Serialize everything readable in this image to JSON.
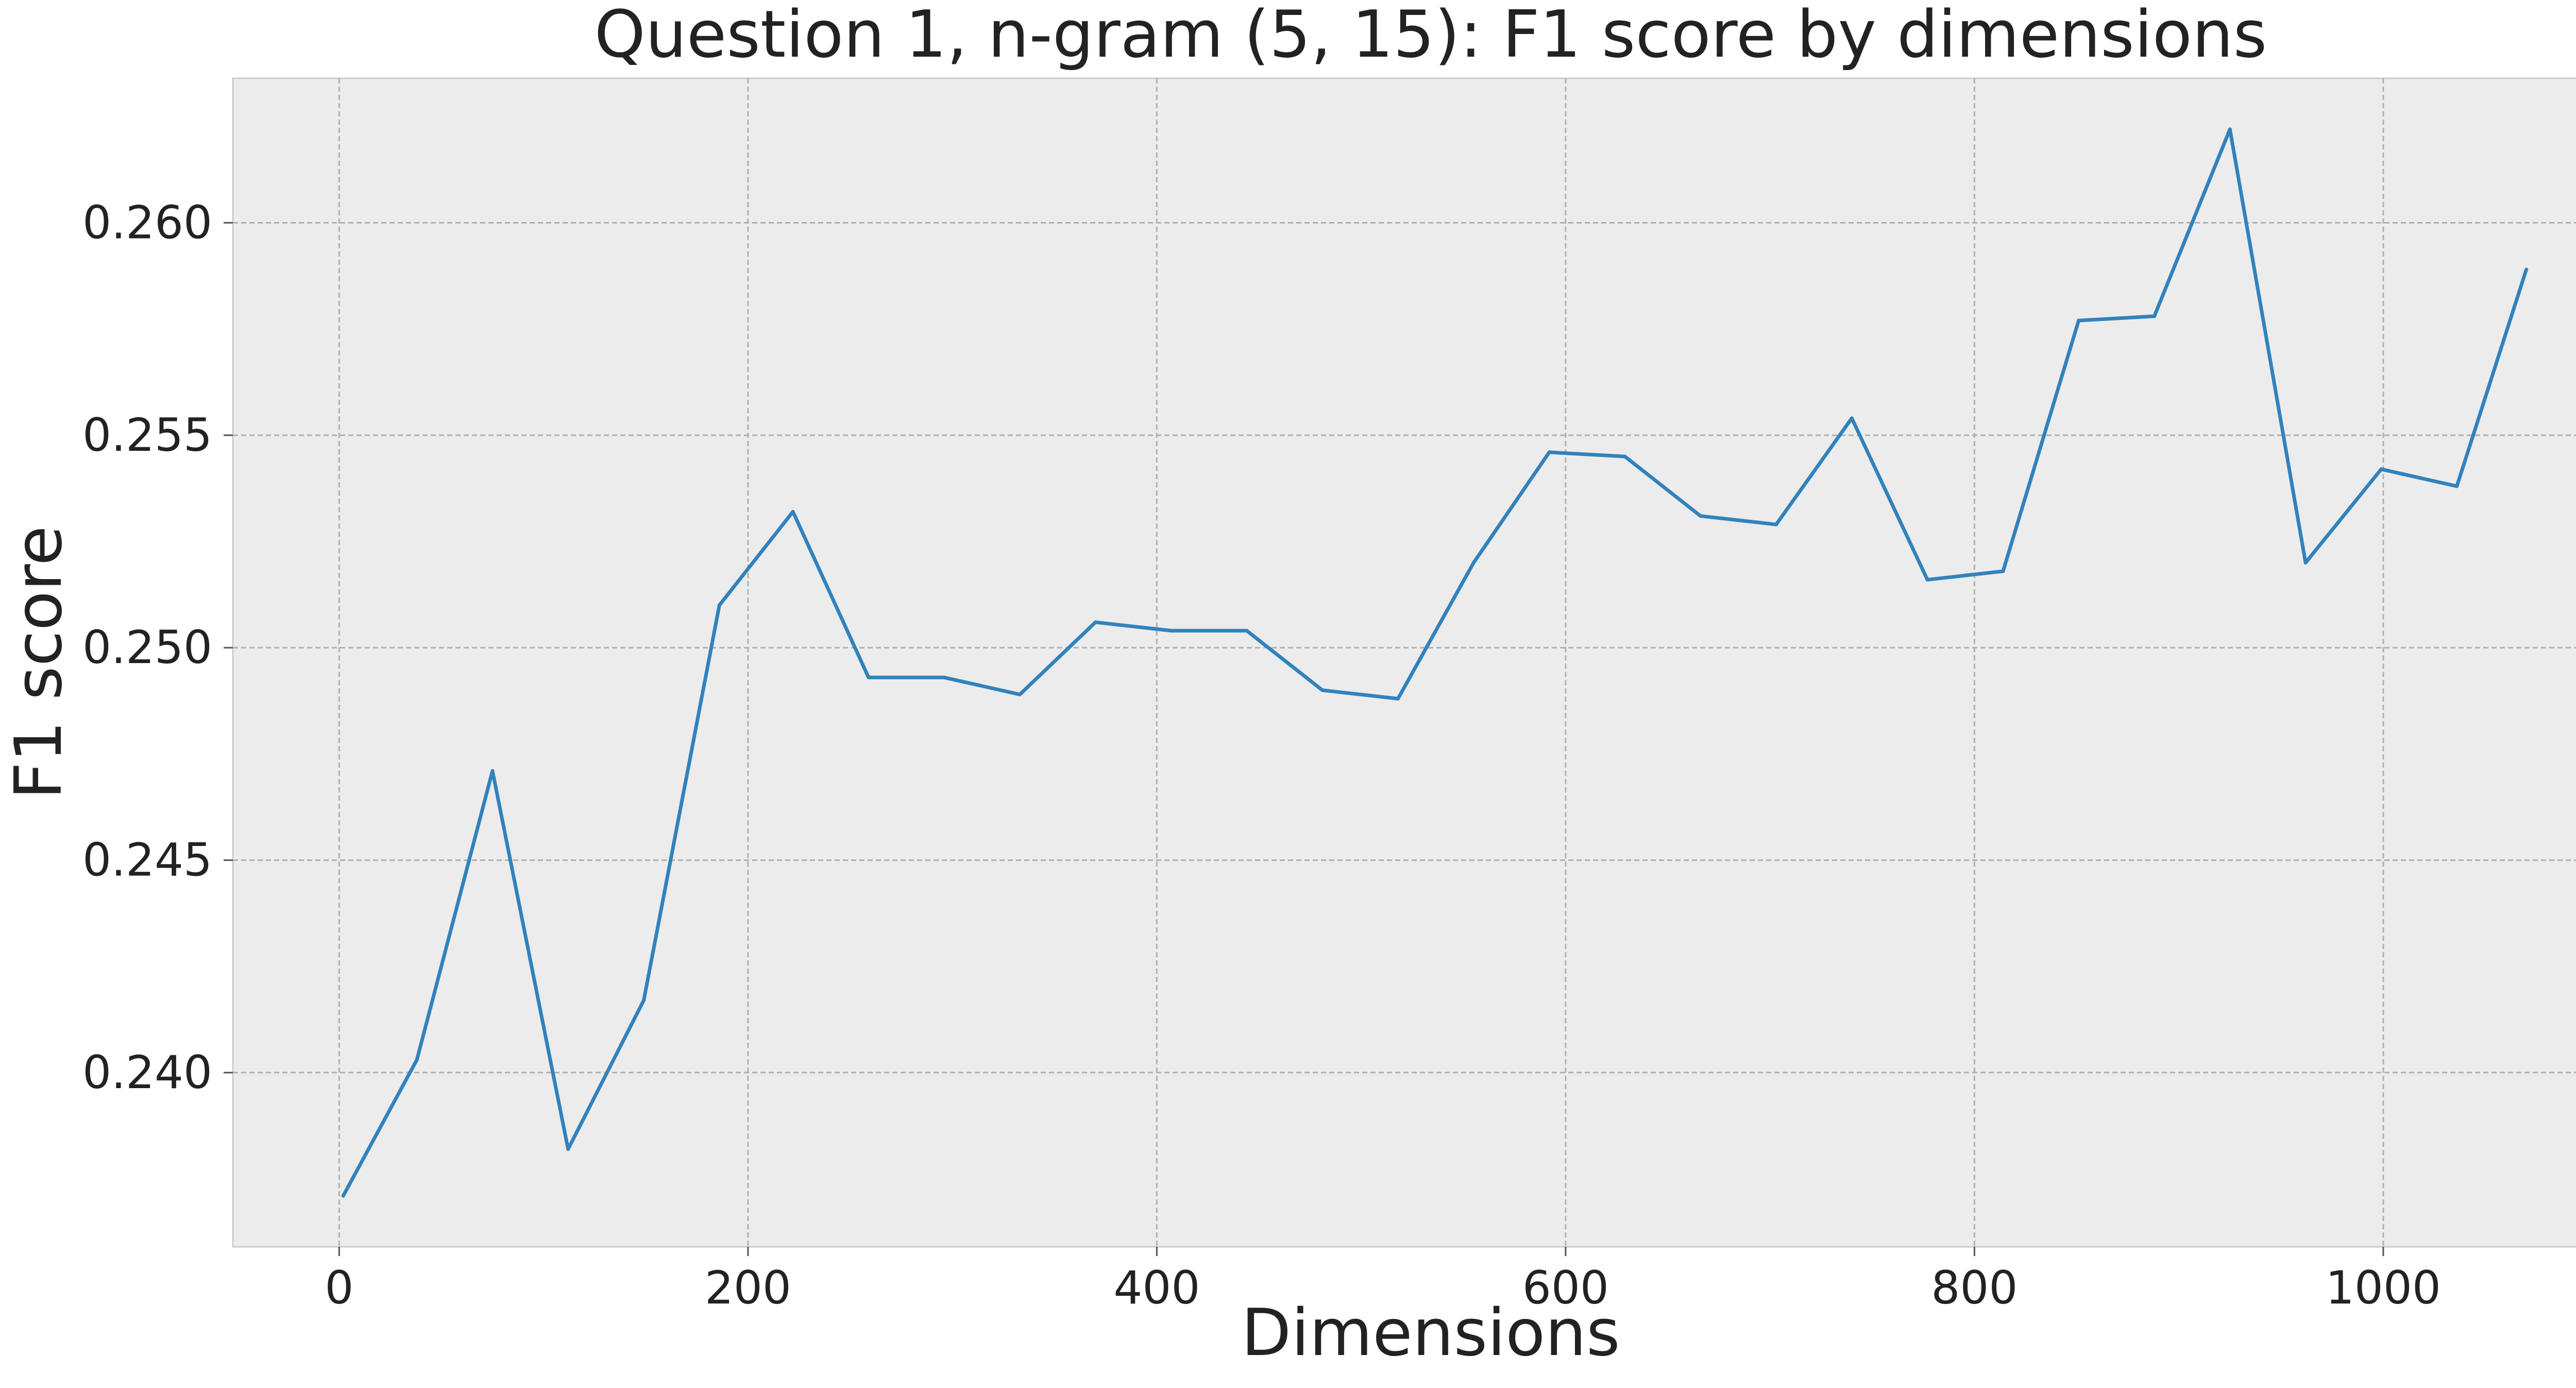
{
  "chart_data": {
    "type": "line",
    "title": "Question 1, n-gram (5, 15): F1 score by dimensions",
    "xlabel": "Dimensions",
    "ylabel": "F1 score",
    "xlim": [
      -52,
      1120
    ],
    "ylim": [
      0.2359,
      0.2634
    ],
    "xticks": [
      0,
      200,
      400,
      600,
      800,
      1000
    ],
    "xtick_labels": [
      "0",
      "200",
      "400",
      "600",
      "800",
      "1000"
    ],
    "yticks": [
      0.24,
      0.245,
      0.25,
      0.255,
      0.26
    ],
    "ytick_labels": [
      "0.240",
      "0.245",
      "0.250",
      "0.255",
      "0.260"
    ],
    "grid": true,
    "background": "#ececec",
    "series": [
      {
        "color": "#3182bd",
        "x": [
          2,
          38,
          75,
          112,
          149,
          186,
          222,
          259,
          296,
          333,
          370,
          407,
          444,
          481,
          518,
          555,
          592,
          629,
          666,
          703,
          740,
          777,
          814,
          851,
          888,
          925,
          962,
          999,
          1036,
          1070
        ],
        "y": [
          0.2371,
          0.2403,
          0.2471,
          0.2382,
          0.2417,
          0.251,
          0.2532,
          0.2493,
          0.2493,
          0.2489,
          0.2506,
          0.2504,
          0.2504,
          0.249,
          0.2488,
          0.252,
          0.2546,
          0.2545,
          0.2531,
          0.2529,
          0.2554,
          0.2516,
          0.2518,
          0.2577,
          0.2578,
          0.2622,
          0.252,
          0.2542,
          0.2538,
          0.2589
        ]
      }
    ]
  }
}
